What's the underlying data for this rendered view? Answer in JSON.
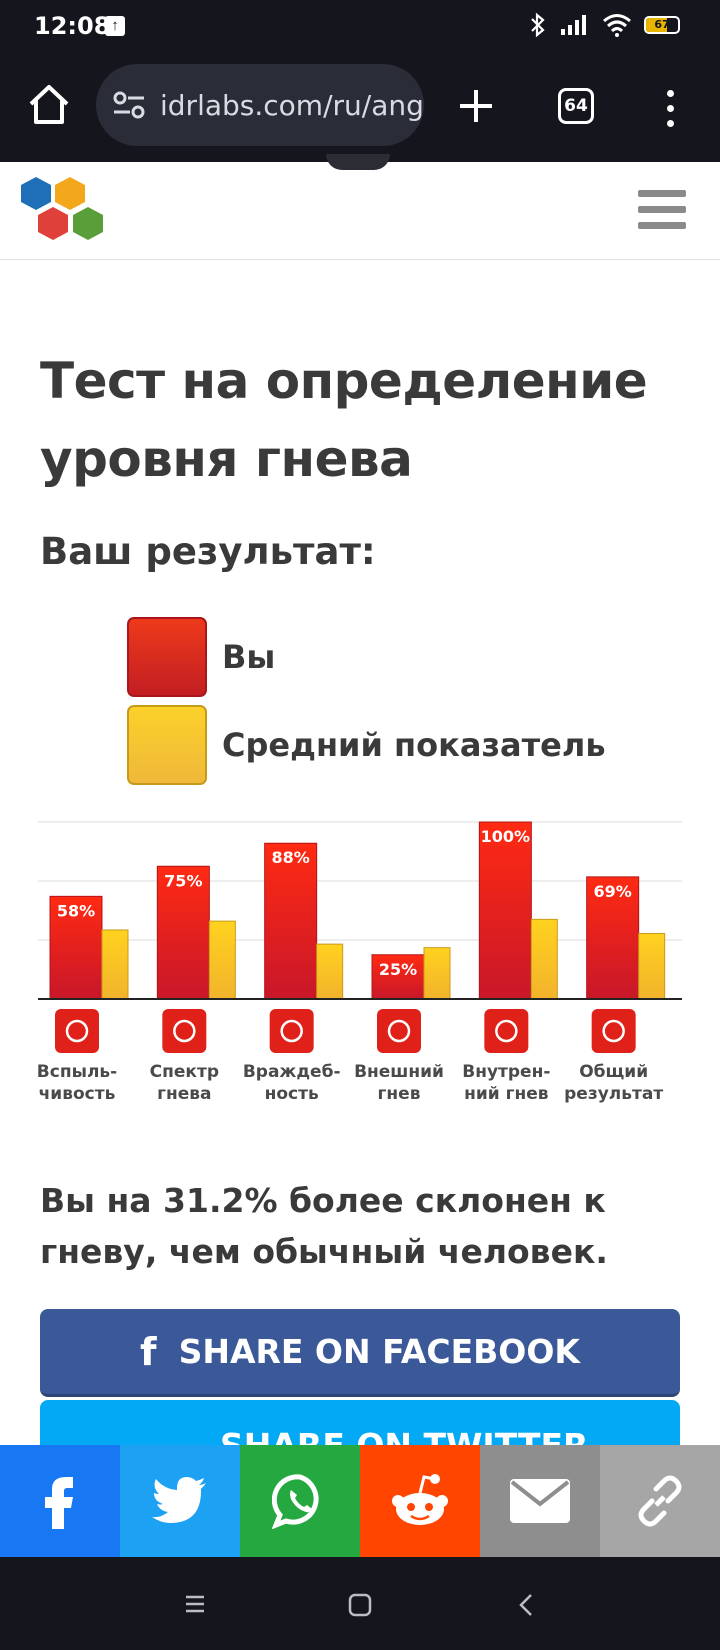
{
  "status_bar": {
    "time": "12:08",
    "battery": "67"
  },
  "browser": {
    "url": "idrlabs.com/ru/anger",
    "tab_count": "64"
  },
  "page": {
    "title": "Тест на определение уровня гнева",
    "result_heading": "Ваш результат:",
    "legend": {
      "you": "Вы",
      "average": "Средний показатель"
    },
    "summary": "Вы на 31.2% более склонен к гневу, чем обычный человек."
  },
  "chart_data": {
    "type": "bar",
    "categories": [
      "Вспыль-чивость",
      "Спектр гнева",
      "Враждеб-ность",
      "Внешний гнев",
      "Внутрен-ний гнев",
      "Общий результат"
    ],
    "category_lines": [
      [
        "Вспыль-",
        "чивость"
      ],
      [
        "Спектр",
        "гнева"
      ],
      [
        "Враждеб-",
        "ность"
      ],
      [
        "Внешний",
        "гнев"
      ],
      [
        "Внутрен-",
        "ний гнев"
      ],
      [
        "Общий",
        "результат"
      ]
    ],
    "series": [
      {
        "name": "Вы",
        "values": [
          58,
          75,
          88,
          25,
          100,
          69
        ],
        "labels": [
          "58%",
          "75%",
          "88%",
          "25%",
          "100%",
          "69%"
        ],
        "color": "#e21b16"
      },
      {
        "name": "Средний показатель",
        "values": [
          39,
          44,
          31,
          29,
          45,
          37
        ],
        "color": "#f6c22d"
      }
    ],
    "ylim": [
      0,
      100
    ],
    "grid": true,
    "icons": [
      "storm-cloud-icon",
      "fan-spectrum-icon",
      "cobra-icon",
      "shouting-head-icon",
      "inward-head-icon",
      "chart-points-icon"
    ]
  },
  "share": {
    "facebook_label": "SHARE ON FACEBOOK",
    "twitter_label": "SHARE ON TWITTER",
    "bar": [
      {
        "name": "facebook",
        "color": "#1877f2"
      },
      {
        "name": "twitter",
        "color": "#1da1f2"
      },
      {
        "name": "whatsapp",
        "color": "#25a840"
      },
      {
        "name": "reddit",
        "color": "#ff4500"
      },
      {
        "name": "email",
        "color": "#8e8e8e"
      },
      {
        "name": "copy-link",
        "color": "#a6a6a6"
      }
    ]
  }
}
